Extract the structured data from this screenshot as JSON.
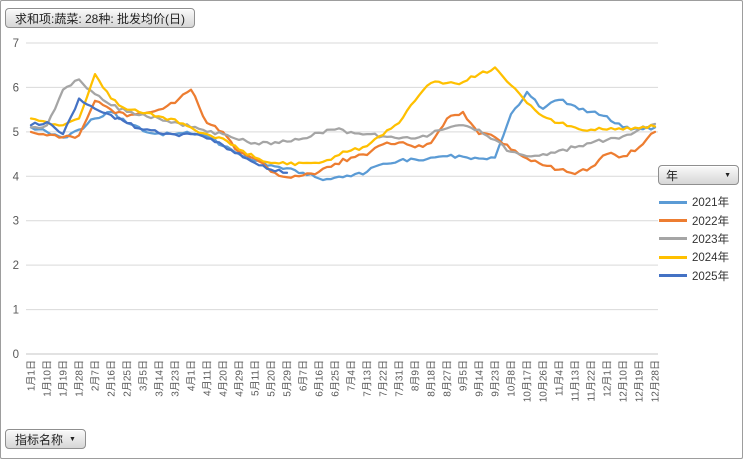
{
  "pivot_buttons": {
    "value_field": "求和项:蔬菜: 28种: 批发均价(日)",
    "axis_field": "指标名称",
    "legend_field": "年"
  },
  "colors": {
    "grid": "#d9d9d9",
    "axis_line": "#c6c6c6",
    "tick_text": "#595959"
  },
  "chart_data": {
    "type": "line",
    "title": "求和项:蔬菜: 28种: 批发均价(日)",
    "xlabel": "",
    "ylabel": "",
    "ylim": [
      0,
      7
    ],
    "yticks": [
      0,
      1,
      2,
      3,
      4,
      5,
      6,
      7
    ],
    "grid": "horizontal",
    "legend_position": "right",
    "x": [
      "1月1日",
      "1月10日",
      "1月19日",
      "1月28日",
      "2月7日",
      "2月16日",
      "2月25日",
      "3月5日",
      "3月14日",
      "3月23日",
      "4月1日",
      "4月11日",
      "4月20日",
      "4月29日",
      "5月11日",
      "5月20日",
      "5月29日",
      "6月7日",
      "6月16日",
      "6月25日",
      "7月4日",
      "7月13日",
      "7月22日",
      "7月31日",
      "8月9日",
      "8月18日",
      "8月27日",
      "9月5日",
      "9月14日",
      "9月23日",
      "10月8日",
      "10月17日",
      "10月26日",
      "11月4日",
      "11月13日",
      "11月22日",
      "12月1日",
      "12月10日",
      "12月19日",
      "12月28日"
    ],
    "series": [
      {
        "name": "2021年",
        "color": "#5B9BD5",
        "values": [
          5.1,
          5.0,
          4.87,
          5.05,
          5.3,
          5.45,
          5.2,
          5.02,
          4.97,
          4.95,
          4.96,
          4.9,
          4.68,
          4.5,
          4.35,
          4.25,
          4.18,
          4.08,
          3.95,
          3.97,
          4.0,
          4.1,
          4.28,
          4.35,
          4.38,
          4.42,
          4.45,
          4.44,
          4.4,
          4.42,
          5.4,
          5.9,
          5.52,
          5.72,
          5.58,
          5.45,
          5.35,
          5.1,
          5.07,
          5.1
        ]
      },
      {
        "name": "2022年",
        "color": "#ED7D31",
        "values": [
          5.0,
          4.92,
          4.88,
          4.92,
          5.7,
          5.5,
          5.35,
          5.4,
          5.5,
          5.65,
          5.95,
          5.2,
          5.0,
          4.55,
          4.4,
          4.1,
          3.98,
          4.02,
          4.1,
          4.28,
          4.42,
          4.48,
          4.72,
          4.76,
          4.65,
          4.75,
          5.3,
          5.45,
          4.95,
          4.88,
          4.6,
          4.4,
          4.25,
          4.15,
          4.05,
          4.2,
          4.5,
          4.45,
          4.65,
          5.0
        ]
      },
      {
        "name": "2023年",
        "color": "#A5A5A5",
        "values": [
          5.1,
          5.15,
          5.95,
          6.18,
          5.85,
          5.6,
          5.45,
          5.4,
          5.3,
          5.22,
          5.1,
          5.0,
          4.95,
          4.82,
          4.75,
          4.72,
          4.78,
          4.85,
          4.98,
          5.05,
          5.0,
          4.95,
          4.9,
          4.85,
          4.85,
          4.95,
          5.08,
          5.15,
          5.05,
          4.82,
          4.55,
          4.45,
          4.5,
          4.58,
          4.65,
          4.75,
          4.82,
          4.9,
          5.05,
          5.18
        ]
      },
      {
        "name": "2024年",
        "color": "#FFC000",
        "values": [
          5.3,
          5.22,
          5.15,
          5.3,
          6.3,
          5.75,
          5.5,
          5.42,
          5.35,
          5.28,
          5.1,
          4.95,
          4.85,
          4.6,
          4.42,
          4.3,
          4.27,
          4.3,
          4.3,
          4.45,
          4.58,
          4.68,
          4.93,
          5.2,
          5.7,
          6.1,
          6.1,
          6.12,
          6.3,
          6.45,
          6.05,
          5.65,
          5.35,
          5.2,
          5.1,
          5.05,
          5.05,
          5.05,
          5.08,
          5.12
        ]
      },
      {
        "name": "2025年",
        "color": "#4472C4",
        "values": [
          5.15,
          5.22,
          4.95,
          5.75,
          5.52,
          5.38,
          5.2,
          5.05,
          4.97,
          4.94,
          4.95,
          4.85,
          4.7,
          4.52,
          4.3,
          4.15,
          4.08,
          null,
          null,
          null,
          null,
          null,
          null,
          null,
          null,
          null,
          null,
          null,
          null,
          null,
          null,
          null,
          null,
          null,
          null,
          null,
          null,
          null,
          null,
          null
        ]
      }
    ]
  }
}
